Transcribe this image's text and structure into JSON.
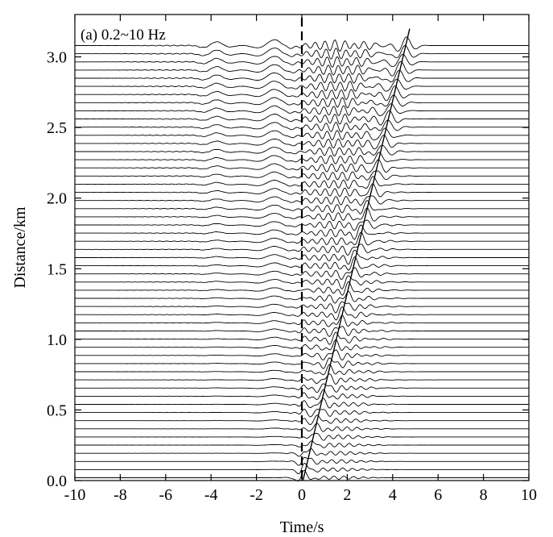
{
  "chart_data": {
    "type": "line",
    "panel_label": "(a) 0.2~10 Hz",
    "xlabel": "Time/s",
    "ylabel": "Distance/km",
    "xlim": [
      -10,
      10
    ],
    "ylim": [
      0,
      3.3
    ],
    "x_ticks": [
      -10,
      -8,
      -6,
      -4,
      -2,
      0,
      2,
      4,
      6,
      8,
      10
    ],
    "x_tick_labels": [
      "-10",
      "-8",
      "-6",
      "-4",
      "-2",
      "0",
      "2",
      "4",
      "6",
      "8",
      "10"
    ],
    "y_ticks": [
      0,
      0.5,
      1.0,
      1.5,
      2.0,
      2.5,
      3.0
    ],
    "y_tick_labels": [
      "0.0",
      "0.5",
      "1.0",
      "1.5",
      "2.0",
      "2.5",
      "3.0"
    ],
    "grid": false,
    "trace_count": 54,
    "trace_distance_start_km": 0.02,
    "trace_distance_end_km": 3.08,
    "reference_line": {
      "style": "dashed",
      "time_s": 0
    },
    "moveout_line": {
      "from": [
        0.05,
        0.0
      ],
      "to": [
        4.75,
        3.2
      ]
    },
    "trace_color": "#000000"
  }
}
